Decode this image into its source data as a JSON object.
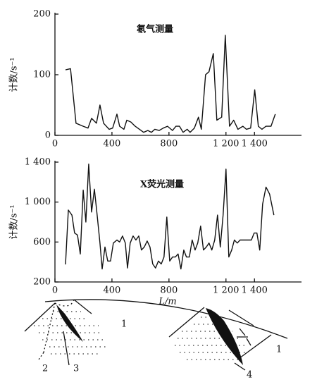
{
  "chart_data": [
    {
      "type": "line",
      "title": "氡气测量",
      "y_label": "计数/s⁻¹",
      "xlim": [
        0,
        1730
      ],
      "xticks": [
        0,
        400,
        800,
        {
          "value": 1200,
          "label": "1 200"
        },
        {
          "value": 1400,
          "label": "1 400"
        }
      ],
      "ylim": [
        0,
        200
      ],
      "yticks": [
        0,
        100,
        200
      ],
      "series": [
        {
          "name": null,
          "color": "#111111",
          "x": [
            74,
            109,
            148,
            198,
            232,
            257,
            291,
            316,
            341,
            380,
            405,
            435,
            454,
            484,
            504,
            533,
            563,
            593,
            622,
            652,
            677,
            701,
            731,
            760,
            790,
            825,
            849,
            874,
            899,
            928,
            948,
            978,
            1007,
            1027,
            1057,
            1081,
            1111,
            1136,
            1170,
            1195,
            1225,
            1254,
            1284,
            1319,
            1343,
            1373,
            1402,
            1427,
            1452,
            1481,
            1516,
            1546
          ],
          "values": [
            108,
            110,
            20,
            15,
            12,
            28,
            20,
            50,
            20,
            10,
            12,
            35,
            15,
            10,
            25,
            22,
            15,
            10,
            5,
            8,
            5,
            10,
            8,
            12,
            15,
            8,
            15,
            15,
            5,
            10,
            5,
            12,
            30,
            10,
            100,
            105,
            135,
            25,
            30,
            165,
            15,
            25,
            10,
            15,
            10,
            12,
            75,
            15,
            10,
            15,
            15,
            35
          ]
        }
      ]
    },
    {
      "type": "line",
      "title": "X荧光测量",
      "y_label": "计数/s⁻¹",
      "x_label": "L/m",
      "xlim": [
        0,
        1730
      ],
      "xticks": [
        0,
        400,
        800,
        {
          "value": 1200,
          "label": "1 200"
        },
        {
          "value": 1400,
          "label": "1 400"
        }
      ],
      "ylim": [
        200,
        1400
      ],
      "yticks": [
        200,
        600,
        {
          "value": 1000,
          "label": "1 000"
        },
        {
          "value": 1400,
          "label": "1 400"
        }
      ],
      "series": [
        {
          "name": null,
          "color": "#111111",
          "x": [
            74,
            94,
            119,
            138,
            158,
            178,
            198,
            217,
            237,
            257,
            277,
            296,
            316,
            331,
            351,
            370,
            390,
            410,
            435,
            454,
            474,
            494,
            509,
            528,
            548,
            568,
            588,
            607,
            627,
            647,
            667,
            686,
            706,
            726,
            746,
            765,
            785,
            805,
            825,
            844,
            864,
            884,
            904,
            923,
            943,
            963,
            983,
            1002,
            1022,
            1042,
            1062,
            1081,
            1101,
            1121,
            1141,
            1160,
            1180,
            1200,
            1220,
            1240,
            1259,
            1279,
            1299,
            1319,
            1338,
            1358,
            1378,
            1398,
            1417,
            1437,
            1457,
            1481,
            1506,
            1536
          ],
          "values": [
            376,
            920,
            870,
            690,
            670,
            480,
            1120,
            800,
            1380,
            900,
            1130,
            870,
            590,
            330,
            550,
            410,
            410,
            590,
            620,
            600,
            660,
            590,
            340,
            590,
            660,
            620,
            660,
            520,
            550,
            610,
            550,
            380,
            340,
            410,
            380,
            450,
            850,
            410,
            450,
            450,
            480,
            330,
            520,
            450,
            450,
            620,
            520,
            590,
            760,
            520,
            550,
            590,
            520,
            620,
            870,
            550,
            870,
            1330,
            450,
            520,
            620,
            590,
            620,
            620,
            620,
            620,
            620,
            690,
            690,
            520,
            980,
            1150,
            1080,
            870
          ]
        }
      ]
    }
  ],
  "diagram": {
    "labels": [
      "1",
      "1",
      "2",
      "3",
      "4"
    ]
  }
}
